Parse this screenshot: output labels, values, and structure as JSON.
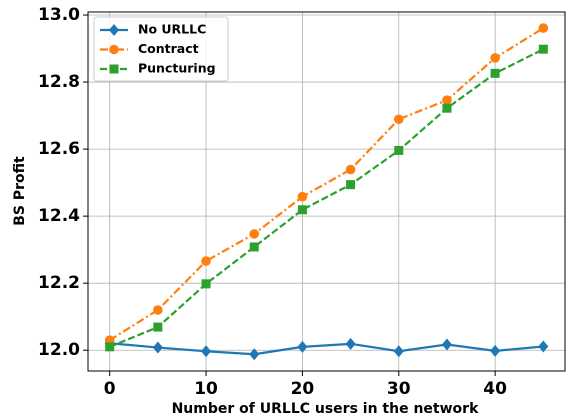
{
  "chart_data": {
    "type": "line",
    "xlabel": "Number of URLLC users in the network",
    "ylabel": "BS Profit",
    "x": [
      0,
      5,
      10,
      15,
      20,
      25,
      30,
      35,
      40,
      45
    ],
    "series": [
      {
        "name": "No URLLC",
        "color": "#1f77b4",
        "marker": "diamond",
        "linestyle": "solid",
        "values": [
          12.021,
          12.008,
          11.997,
          11.988,
          12.01,
          12.019,
          11.997,
          12.017,
          11.998,
          12.011
        ]
      },
      {
        "name": "Contract",
        "color": "#ff7f0e",
        "marker": "circle",
        "linestyle": "dashdot",
        "values": [
          12.03,
          12.12,
          12.266,
          12.347,
          12.458,
          12.539,
          12.689,
          12.746,
          12.872,
          12.961
        ]
      },
      {
        "name": "Puncturing",
        "color": "#2ca02c",
        "marker": "square",
        "linestyle": "dashed",
        "values": [
          12.01,
          12.069,
          12.198,
          12.308,
          12.419,
          12.494,
          12.596,
          12.722,
          12.826,
          12.898
        ]
      }
    ],
    "xlim": [
      -2.25,
      47.25
    ],
    "xticks": [
      0,
      10,
      20,
      30,
      40
    ],
    "ylim": [
      11.938,
      13.009
    ],
    "yticks": [
      {
        "value": 12,
        "label": "12.0"
      },
      12.2,
      12.4,
      12.6,
      12.8,
      {
        "value": 13,
        "label": "13.0"
      }
    ],
    "grid": true,
    "legend_loc": "upper left"
  }
}
